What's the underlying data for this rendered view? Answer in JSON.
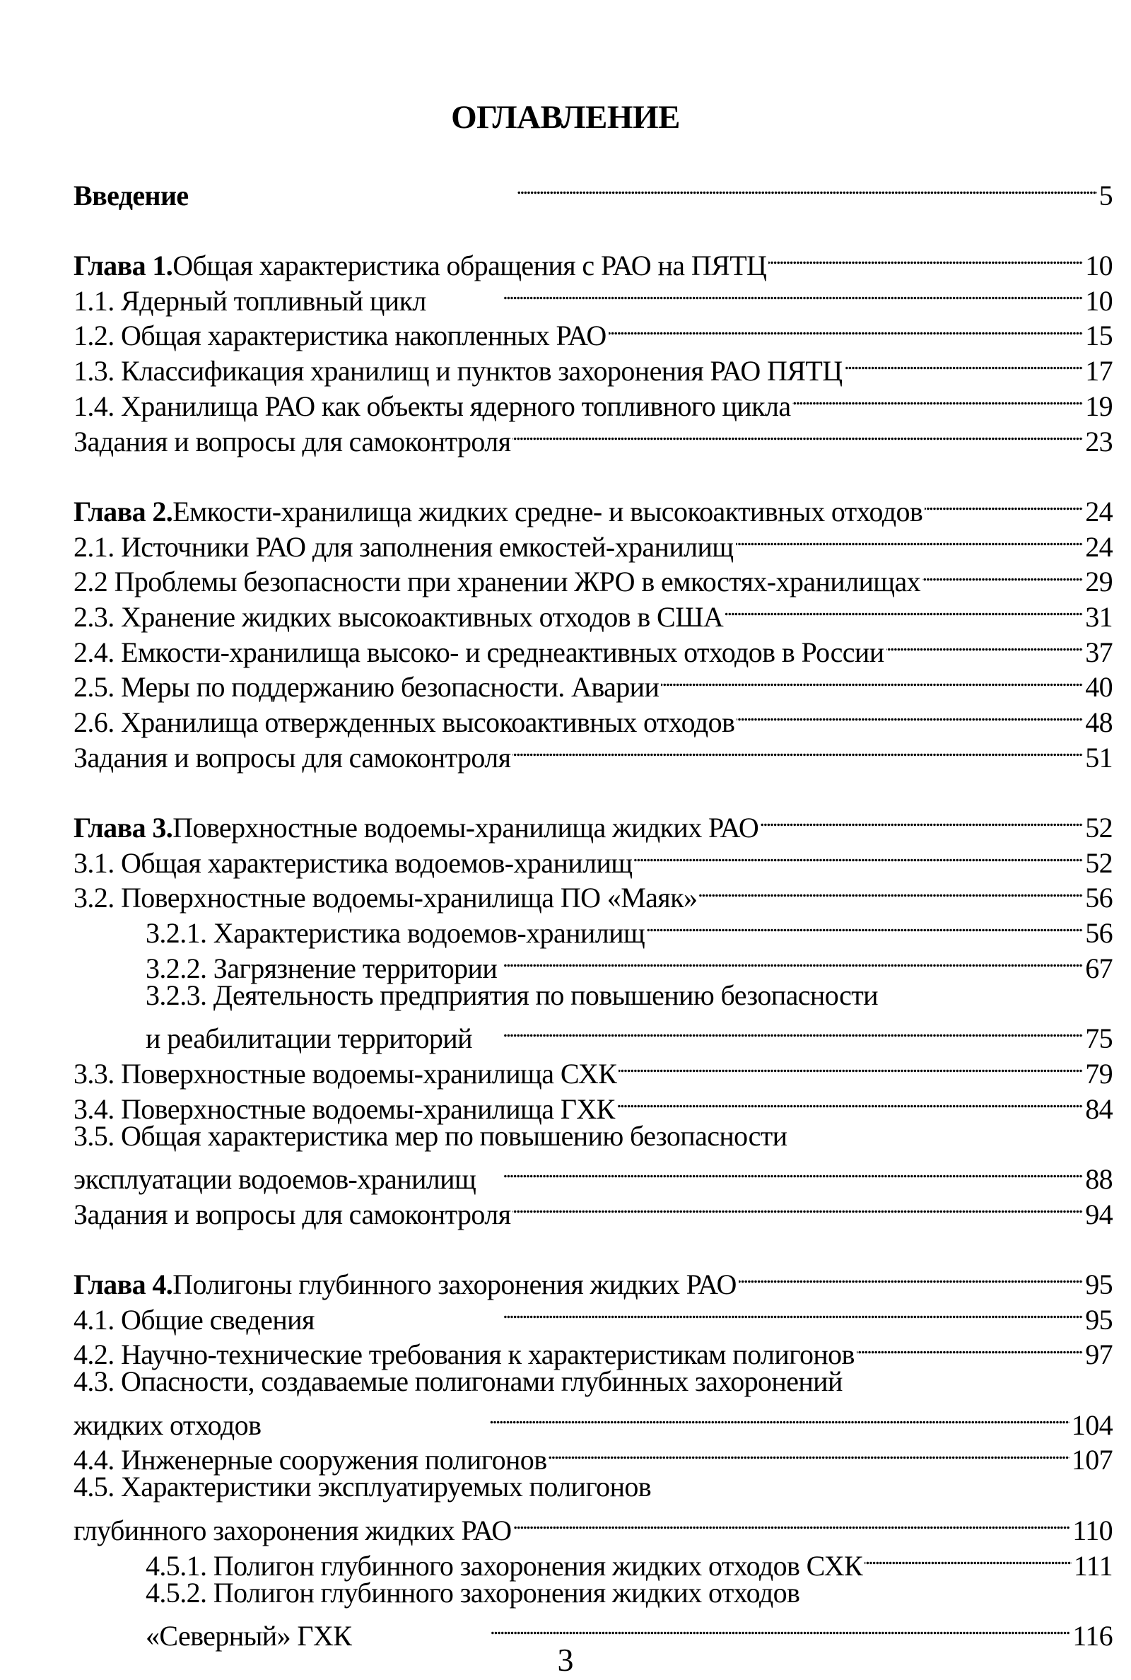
{
  "title": "ОГЛАВЛЕНИЕ",
  "groups": [
    {
      "entries": [
        {
          "level": 0,
          "bold": "Введение",
          "lines": [
            ""
          ],
          "page": "5"
        }
      ]
    },
    {
      "entries": [
        {
          "level": 0,
          "bold": "Глава 1.",
          "lines": [
            " Общая характеристика обращения с РАО на ПЯТЦ"
          ],
          "page": "10"
        },
        {
          "level": 0,
          "lines": [
            "1.1. Ядерный топливный цикл"
          ],
          "page": "10"
        },
        {
          "level": 0,
          "lines": [
            "1.2. Общая характеристика накопленных РАО"
          ],
          "page": "15"
        },
        {
          "level": 0,
          "lines": [
            "1.3. Классификация хранилищ и пунктов захоронения РАО ПЯТЦ"
          ],
          "page": "17"
        },
        {
          "level": 0,
          "lines": [
            "1.4. Хранилища РАО как объекты ядерного топливного цикла"
          ],
          "page": "19"
        },
        {
          "level": 0,
          "lines": [
            "Задания и вопросы для самоконтроля"
          ],
          "page": "23"
        }
      ]
    },
    {
      "entries": [
        {
          "level": 0,
          "bold": "Глава 2.",
          "lines": [
            " Емкости-хранилища жидких средне- и высокоактивных отходов"
          ],
          "page": "24"
        },
        {
          "level": 0,
          "lines": [
            "2.1. Источники РАО для заполнения емкостей-хранилищ"
          ],
          "page": "24"
        },
        {
          "level": 0,
          "lines": [
            "2.2 Проблемы безопасности при хранении ЖРО в емкостях-хранилищах"
          ],
          "page": "29"
        },
        {
          "level": 0,
          "lines": [
            "2.3. Хранение жидких высокоактивных отходов в США"
          ],
          "page": "31"
        },
        {
          "level": 0,
          "lines": [
            "2.4. Емкости-хранилища  высоко- и среднеактивных отходов в России"
          ],
          "page": "37"
        },
        {
          "level": 0,
          "lines": [
            "2.5. Меры по поддержанию безопасности. Аварии"
          ],
          "page": "40"
        },
        {
          "level": 0,
          "lines": [
            "2.6. Хранилища отвержденных высокоактивных отходов"
          ],
          "page": "48"
        },
        {
          "level": 0,
          "lines": [
            "Задания и вопросы для самоконтроля"
          ],
          "page": "51"
        }
      ]
    },
    {
      "entries": [
        {
          "level": 0,
          "bold": "Глава 3.",
          "lines": [
            " Поверхностные водоемы-хранилища жидких РАО"
          ],
          "page": "52"
        },
        {
          "level": 0,
          "lines": [
            "3.1. Общая характеристика водоемов-хранилищ"
          ],
          "page": "52"
        },
        {
          "level": 0,
          "lines": [
            "3.2. Поверхностные водоемы-хранилища ПО «Маяк»"
          ],
          "page": "56"
        },
        {
          "level": 1,
          "lines": [
            "3.2.1. Характеристика водоемов-хранилищ"
          ],
          "page": "56"
        },
        {
          "level": 1,
          "lines": [
            "3.2.2. Загрязнение территории"
          ],
          "page": "67"
        },
        {
          "level": 1,
          "lines": [
            "3.2.3. Деятельность предприятия по повышению безопасности",
            "и реабилитации территорий"
          ],
          "page": "75"
        },
        {
          "level": 0,
          "lines": [
            "3.3. Поверхностные водоемы-хранилища СХК"
          ],
          "page": "79"
        },
        {
          "level": 0,
          "lines": [
            "3.4. Поверхностные водоемы-хранилища ГХК"
          ],
          "page": "84"
        },
        {
          "level": 0,
          "lines": [
            "3.5. Общая характеристика мер по повышению безопасности",
            "эксплуатации водоемов-хранилищ"
          ],
          "page": "88"
        },
        {
          "level": 0,
          "lines": [
            "Задания и вопросы для самоконтроля"
          ],
          "page": "94"
        }
      ]
    },
    {
      "entries": [
        {
          "level": 0,
          "bold": "Глава 4.",
          "lines": [
            " Полигоны глубинного захоронения жидких РАО"
          ],
          "page": "95"
        },
        {
          "level": 0,
          "lines": [
            "4.1. Общие сведения"
          ],
          "page": "95"
        },
        {
          "level": 0,
          "lines": [
            "4.2. Научно-технические требования к характеристикам полигонов"
          ],
          "page": "97"
        },
        {
          "level": 0,
          "lines": [
            "4.3. Опасности, создаваемые полигонами глубинных захоронений",
            "жидких отходов"
          ],
          "page": "104"
        },
        {
          "level": 0,
          "lines": [
            "4.4. Инженерные сооружения полигонов"
          ],
          "page": "107"
        },
        {
          "level": 0,
          "lines": [
            "4.5. Характеристики эксплуатируемых полигонов",
            "глубинного захоронения жидких РАО"
          ],
          "page": "110"
        },
        {
          "level": 1,
          "lines": [
            "4.5.1. Полигон глубинного захоронения жидких отходов СХК"
          ],
          "page": "111"
        },
        {
          "level": 1,
          "lines": [
            "4.5.2. Полигон глубинного захоронения жидких отходов",
            "«Северный» ГХК"
          ],
          "page": "116"
        }
      ]
    }
  ],
  "page_number": "3"
}
